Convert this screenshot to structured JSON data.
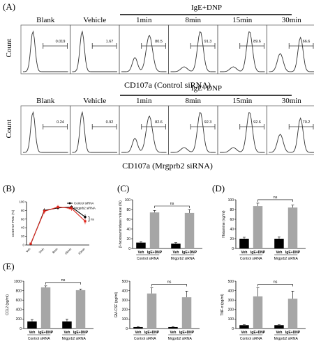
{
  "panels": {
    "A": {
      "label": "(A)",
      "group_label": "IgE+DNP",
      "columns": [
        "Blank",
        "Vehicle",
        "1min",
        "8min",
        "15min",
        "30min"
      ],
      "ylabel": "Count",
      "rows": [
        {
          "xlabel": "CD107a (Control siRNA)",
          "values": [
            "0.019",
            "1.67",
            "80.5",
            "91.3",
            "89.6",
            "66.6"
          ]
        },
        {
          "xlabel": "CD107a (Mrgprb2 siRNA)",
          "values": [
            "0.24",
            "0.92",
            "82.6",
            "92.3",
            "92.6",
            "70.2"
          ]
        }
      ]
    },
    "B": {
      "label": "(B)",
      "ylabel": "CD107a+ PMC (%)",
      "ns": "ns"
    },
    "C": {
      "label": "(C)",
      "ylabel": "β-hexosaminidase release (%)",
      "ns": "ns"
    },
    "D": {
      "label": "(D)",
      "ylabel": "Histamine (ng/ml)",
      "ns": "ns"
    },
    "E": {
      "label": "(E)"
    }
  },
  "chart_data": [
    {
      "type": "line",
      "panel": "B",
      "x": [
        "Veh",
        "1min",
        "8min",
        "15min",
        "30min"
      ],
      "ylabel": "CD107a+ PMC (%)",
      "ylim": [
        0,
        100
      ],
      "yticks": [
        0,
        20,
        40,
        60,
        80,
        100
      ],
      "series": [
        {
          "name": "Control siRNA",
          "color": "#000000",
          "values": [
            2,
            80,
            86,
            88,
            65
          ],
          "err": [
            1,
            5,
            4,
            4,
            6
          ]
        },
        {
          "name": "Mrgprb2 siRNA",
          "color": "#e0261c",
          "values": [
            3,
            78,
            88,
            85,
            55
          ],
          "err": [
            1,
            6,
            5,
            6,
            7
          ]
        }
      ],
      "annotation": "ns"
    },
    {
      "type": "bar",
      "panel": "C",
      "categories": [
        "Veh",
        "IgE+DNP",
        "Veh",
        "IgE+DNP"
      ],
      "groups": [
        "Control siRNA",
        "Mrgprb2 siRNA"
      ],
      "values": [
        12,
        74,
        10,
        73
      ],
      "err": [
        2,
        4,
        2,
        7
      ],
      "ylabel": "β-hexosaminidase release (%)",
      "ylim": [
        0,
        100
      ],
      "yticks": [
        0,
        20,
        40,
        60,
        80,
        100
      ],
      "annotation": "ns"
    },
    {
      "type": "bar",
      "panel": "D",
      "categories": [
        "Veh",
        "IgE+DNP",
        "Veh",
        "IgE+DNP"
      ],
      "groups": [
        "Control siRNA",
        "Mrgprb2 siRNA"
      ],
      "values": [
        20,
        87,
        20,
        84
      ],
      "err": [
        3,
        6,
        4,
        5
      ],
      "ylabel": "Histamine (ng/ml)",
      "ylim": [
        0,
        100
      ],
      "yticks": [
        0,
        20,
        40,
        60,
        80,
        100
      ],
      "annotation": "ns"
    },
    {
      "type": "bar",
      "panel": "E",
      "categories": [
        "Veh",
        "IgE+DNP",
        "Veh",
        "IgE+DNP"
      ],
      "groups": [
        "Control siRNA",
        "Mrgprb2 siRNA"
      ],
      "values": [
        150,
        870,
        150,
        810
      ],
      "err": [
        40,
        30,
        50,
        25
      ],
      "ylabel": "CCL2 (pg/ml)",
      "ylim": [
        0,
        1000
      ],
      "yticks": [
        0,
        200,
        400,
        600,
        800,
        1000
      ],
      "annotation": "ns"
    },
    {
      "type": "bar",
      "panel": "E",
      "categories": [
        "Veh",
        "IgE+DNP",
        "Veh",
        "IgE+DNP"
      ],
      "groups": [
        "Control siRNA",
        "Mrgprb2 siRNA"
      ],
      "values": [
        15,
        370,
        15,
        330
      ],
      "err": [
        5,
        60,
        5,
        65
      ],
      "ylabel": "GM-CSF (pg/ml)",
      "ylim": [
        0,
        500
      ],
      "yticks": [
        0,
        100,
        200,
        300,
        400,
        500
      ],
      "annotation": "ns"
    },
    {
      "type": "bar",
      "panel": "E",
      "categories": [
        "Veh",
        "IgE+DNP",
        "Veh",
        "IgE+DNP"
      ],
      "groups": [
        "Control siRNA",
        "Mrgprb2 siRNA"
      ],
      "values": [
        35,
        340,
        35,
        315
      ],
      "err": [
        5,
        90,
        5,
        80
      ],
      "ylabel": "TNF-α (pg/ml)",
      "ylim": [
        0,
        500
      ],
      "yticks": [
        0,
        100,
        200,
        300,
        400,
        500
      ],
      "annotation": "ns"
    }
  ]
}
